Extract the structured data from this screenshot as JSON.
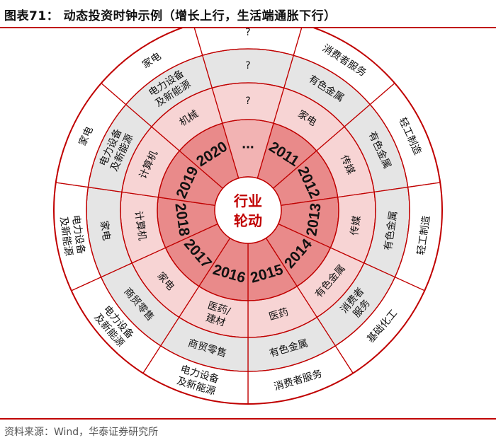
{
  "title": "图表71：  动态投资时钟示例（增长上行，生活端通胀下行）",
  "source": "资料来源：Wind，华泰证券研究所",
  "center": {
    "line1": "行业",
    "line2": "轮动"
  },
  "colors": {
    "accent": "#c00000",
    "inner_sector_a": "#e98a8a",
    "inner_sector_b": "#f2b3b3",
    "ring1": "#f7d4d4",
    "ring2": "#e5e5e5",
    "ring3": "#ffffff"
  },
  "inner_years": [
    "2011",
    "2012",
    "2013",
    "2014",
    "2015",
    "2016",
    "2017",
    "2018",
    "2019",
    "2020",
    "..."
  ],
  "ring1_labels": [
    "家电",
    "传媒",
    "传媒",
    "有色金属",
    "医药",
    "医药/建材",
    "家电",
    "计算机",
    "计算机",
    "机械",
    "?"
  ],
  "ring2_labels": [
    "有色金属",
    "有色金属",
    "有色金属",
    "消费者服务",
    "有色金属",
    "商贸零售",
    "商贸零售",
    "家电",
    "电力设备及新能源",
    "电力设备及新能源",
    "?"
  ],
  "ring3_labels": [
    "消费者服务",
    "轻工制造",
    "轻工制造",
    "基础化工",
    "消费者服务",
    "电力设备及新能源",
    "电力设备及新能源",
    "电力设备及新能源",
    "家电",
    "家电",
    "?"
  ]
}
